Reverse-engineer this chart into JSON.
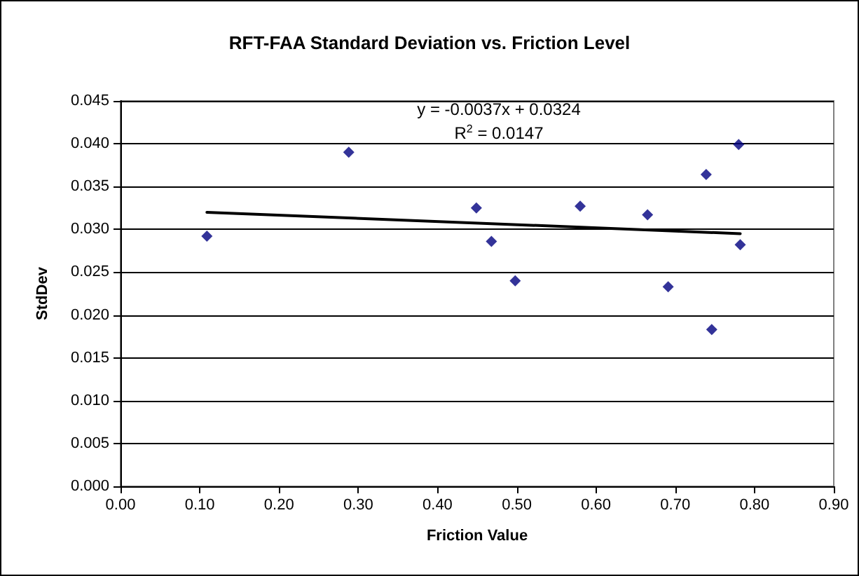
{
  "chart_data": {
    "type": "scatter",
    "title": "RFT-FAA Standard Deviation vs. Friction Level",
    "xlabel": "Friction Value",
    "ylabel": "StdDev",
    "series": [
      {
        "type": "scatter",
        "color": "#000080",
        "marker": "diamond",
        "x": [
          0.109,
          0.288,
          0.449,
          0.468,
          0.498,
          0.58,
          0.665,
          0.691,
          0.739,
          0.746,
          0.78,
          0.782
        ],
        "values": [
          0.0292,
          0.039,
          0.0325,
          0.0286,
          0.024,
          0.0327,
          0.0317,
          0.0233,
          0.0364,
          0.0183,
          0.0399,
          0.0282
        ]
      },
      {
        "type": "line",
        "color": "#000000",
        "marker": "none",
        "line_style": "solid",
        "x": [
          0.109,
          0.782
        ],
        "values": [
          0.032,
          0.0295
        ]
      }
    ],
    "annotations": [
      "y = -0.0037x + 0.0324",
      "R$^{2}$ = 0.0147"
    ],
    "xlim": [
      0,
      0.9
    ],
    "xticks": [
      {
        "value": 0,
        "label": "0.00"
      },
      {
        "value": 0.1,
        "label": "0.10"
      },
      {
        "value": 0.2,
        "label": "0.20"
      },
      {
        "value": 0.3,
        "label": "0.30"
      },
      {
        "value": 0.4,
        "label": "0.40"
      },
      {
        "value": 0.5,
        "label": "0.50"
      },
      {
        "value": 0.6,
        "label": "0.60"
      },
      {
        "value": 0.7,
        "label": "0.70"
      },
      {
        "value": 0.8,
        "label": "0.80"
      },
      {
        "value": 0.9,
        "label": "0.90"
      }
    ],
    "ylim": [
      0,
      0.045
    ],
    "yticks": [
      {
        "value": 0,
        "label": "0.000"
      },
      0.005,
      {
        "value": 0.01,
        "label": "0.010"
      },
      0.015,
      {
        "value": 0.02,
        "label": "0.020"
      },
      0.025,
      {
        "value": 0.03,
        "label": "0.030"
      },
      0.035,
      {
        "value": 0.04,
        "label": "0.040"
      },
      0.045
    ],
    "grid": "y"
  }
}
